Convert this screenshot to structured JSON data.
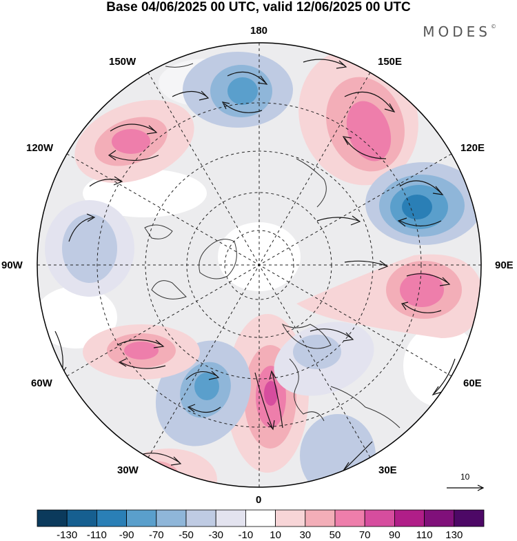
{
  "title": "Base 04/06/2025 00 UTC, valid 12/06/2025 00 UTC",
  "brand": {
    "name": "MODES",
    "mark": "©"
  },
  "longitude_labels": {
    "top": "180",
    "bottom": "0",
    "left": "90W",
    "right": "90E",
    "upper_left_1": "150W",
    "upper_left_2": "120W",
    "lower_left_1": "60W",
    "lower_left_2": "30W",
    "upper_right_1": "150E",
    "upper_right_2": "120E",
    "lower_right_1": "60E",
    "lower_right_2": "30E"
  },
  "colorbar": {
    "ticks": [
      "-130",
      "-110",
      "-90",
      "-70",
      "-50",
      "-30",
      "-10",
      "10",
      "30",
      "50",
      "70",
      "90",
      "110",
      "130"
    ],
    "colors": [
      "#0b3a5c",
      "#165f90",
      "#2a7fb6",
      "#5a9fcc",
      "#8fb6d9",
      "#bfcbe3",
      "#e3e3ef",
      "#ffffff",
      "#f7d5d7",
      "#f3aeb8",
      "#ee7eab",
      "#d64d9e",
      "#b01e88",
      "#80107a",
      "#4d0866"
    ]
  },
  "reference_vector": {
    "label": "10"
  },
  "map": {
    "projection": "north-polar-stereographic",
    "anomalies": [
      {
        "name": "positive-center-150E",
        "value": 80
      },
      {
        "name": "negative-center-120E",
        "value": -120
      },
      {
        "name": "negative-center-180",
        "value": -70
      },
      {
        "name": "positive-center-135W",
        "value": 55
      },
      {
        "name": "positive-center-90E",
        "value": 70
      },
      {
        "name": "positive-center-0",
        "value": 90
      },
      {
        "name": "negative-center-30W",
        "value": -70
      },
      {
        "name": "positive-center-60W",
        "value": 55
      },
      {
        "name": "negative-center-45E",
        "value": -40
      },
      {
        "name": "negative-center-105W",
        "value": -40
      }
    ]
  }
}
